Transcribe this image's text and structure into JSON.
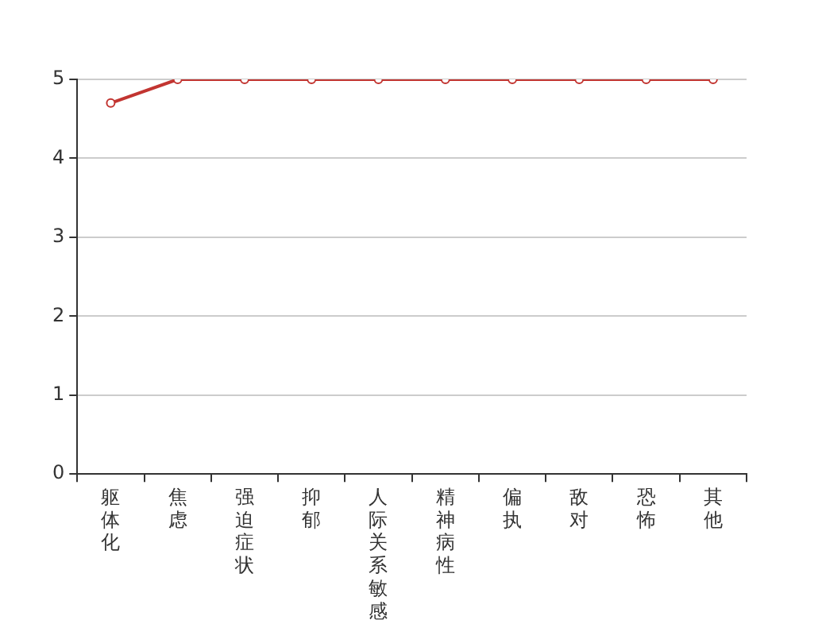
{
  "chart_data": {
    "type": "line",
    "categories": [
      "躯体化",
      "焦虑",
      "强迫症状",
      "抑郁",
      "人际关系敏感",
      "精神病性",
      "偏执",
      "敌对",
      "恐怖",
      "其他"
    ],
    "series": [
      {
        "color": "#c23531",
        "values": [
          4.7,
          5,
          5,
          5,
          5,
          5,
          5,
          5,
          5,
          5
        ]
      }
    ],
    "ylim": [
      0,
      5
    ],
    "yticks": [
      0,
      1,
      2,
      3,
      4,
      5
    ],
    "grid": "y",
    "legend": false,
    "marker": "circle",
    "line_style": "solid"
  }
}
